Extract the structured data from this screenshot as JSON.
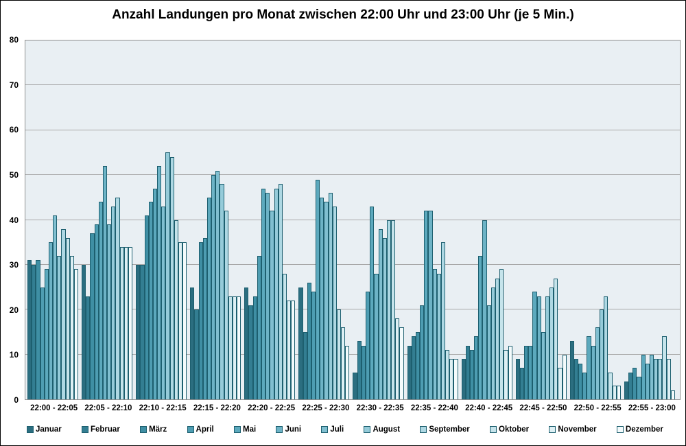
{
  "title": "Anzahl Landungen pro Monat zwischen 22:00 Uhr und 23:00 Uhr (je 5 Min.)",
  "colors": {
    "bar_border": "#1d5f6f",
    "plot_background": "#e9eff3",
    "gridline": "#a7a7a7",
    "plot_border": "#8f8f8f"
  },
  "chart_data": {
    "type": "bar",
    "title": "Anzahl Landungen pro Monat zwischen 22:00 Uhr und 23:00 Uhr (je 5 Min.)",
    "xlabel": "",
    "ylabel": "",
    "ylim": [
      0,
      80
    ],
    "ytick_step": 10,
    "grid": true,
    "legend_position": "bottom",
    "categories": [
      "22:00 - 22:05",
      "22:05 - 22:10",
      "22:10 - 22:15",
      "22:15 - 22:20",
      "22:20 - 22:25",
      "22:25 - 22:30",
      "22:30 - 22:35",
      "22:35 - 22:40",
      "22:40 - 22:45",
      "22:45 - 22:50",
      "22:50 - 22:55",
      "22:55 - 23:00"
    ],
    "series": [
      {
        "name": "Januar",
        "color": "#2b6e80",
        "values": [
          31,
          30,
          30,
          25,
          25,
          25,
          6,
          12,
          9,
          9,
          13,
          4
        ]
      },
      {
        "name": "Februar",
        "color": "#337e92",
        "values": [
          30,
          23,
          30,
          20,
          21,
          15,
          13,
          14,
          12,
          7,
          9,
          6
        ]
      },
      {
        "name": "März",
        "color": "#3f8fa4",
        "values": [
          31,
          37,
          41,
          35,
          23,
          26,
          12,
          15,
          11,
          12,
          8,
          7
        ]
      },
      {
        "name": "April",
        "color": "#4e9db2",
        "values": [
          25,
          39,
          44,
          36,
          32,
          24,
          24,
          21,
          14,
          12,
          6,
          5
        ]
      },
      {
        "name": "Mai",
        "color": "#5ca9bd",
        "values": [
          29,
          44,
          47,
          45,
          47,
          49,
          43,
          42,
          32,
          24,
          14,
          10
        ]
      },
      {
        "name": "Juni",
        "color": "#6db3c6",
        "values": [
          35,
          52,
          52,
          50,
          46,
          45,
          28,
          42,
          40,
          23,
          12,
          8
        ]
      },
      {
        "name": "Juli",
        "color": "#80bfd0",
        "values": [
          41,
          39,
          43,
          51,
          42,
          44,
          38,
          29,
          21,
          15,
          16,
          10
        ]
      },
      {
        "name": "August",
        "color": "#95cbd9",
        "values": [
          32,
          43,
          55,
          48,
          47,
          46,
          36,
          28,
          25,
          23,
          20,
          9
        ]
      },
      {
        "name": "September",
        "color": "#aed8e3",
        "values": [
          38,
          45,
          54,
          42,
          48,
          43,
          40,
          35,
          27,
          25,
          23,
          9
        ]
      },
      {
        "name": "Oktober",
        "color": "#c6e4eb",
        "values": [
          36,
          34,
          40,
          23,
          28,
          20,
          40,
          11,
          29,
          27,
          6,
          14
        ]
      },
      {
        "name": "November",
        "color": "#def0f4",
        "values": [
          32,
          34,
          35,
          23,
          22,
          16,
          18,
          9,
          11,
          7,
          3,
          9
        ]
      },
      {
        "name": "Dezember",
        "color": "#f4fbfc",
        "values": [
          29,
          34,
          35,
          23,
          22,
          12,
          16,
          9,
          12,
          10,
          3,
          2
        ]
      }
    ]
  }
}
